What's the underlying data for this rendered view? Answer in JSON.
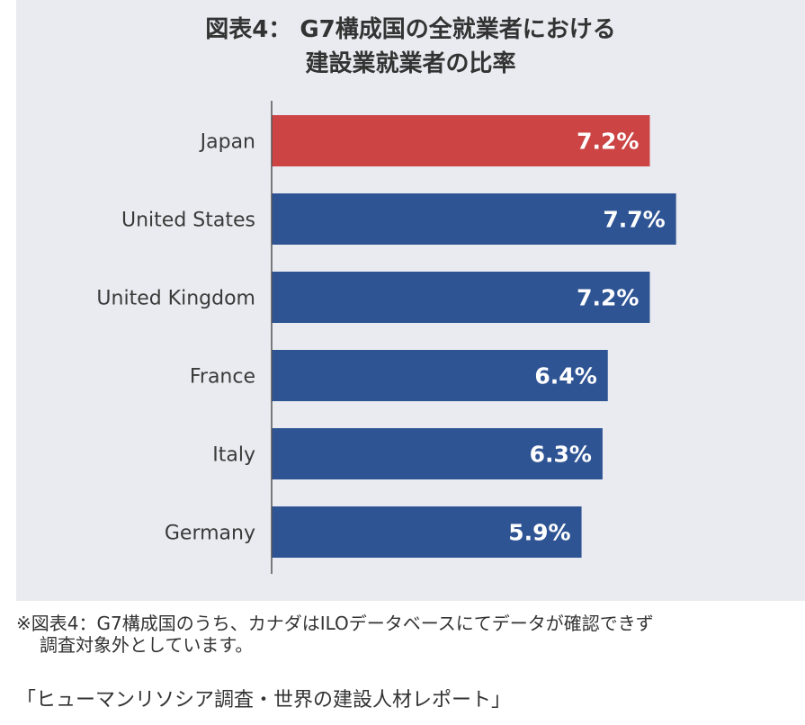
{
  "colors": {
    "highlight": "#cc4444",
    "bar": "#2f5494",
    "panel": "#e9ebf0"
  },
  "chart_data": {
    "type": "bar",
    "orientation": "horizontal",
    "title_line1": "図表4： G7構成国の全就業者における",
    "title_line2": "建設業就業者の比率",
    "categories": [
      "Japan",
      "United States",
      "United Kingdom",
      "France",
      "Italy",
      "Germany"
    ],
    "values": [
      7.2,
      7.7,
      7.2,
      6.4,
      6.3,
      5.9
    ],
    "value_labels": [
      "7.2%",
      "7.7%",
      "7.2%",
      "6.4%",
      "6.3%",
      "5.9%"
    ],
    "highlight_index": 0,
    "xlim": [
      0,
      8.5
    ],
    "grid": false,
    "xlabel": "",
    "ylabel": ""
  },
  "note": {
    "line1": "※図表4：G7構成国のうち、カナダはILOデータベースにてデータが確認できず",
    "line2": "調査対象外としています。"
  },
  "source": "「ヒューマンリソシア調査・世界の建設人材レポート」"
}
